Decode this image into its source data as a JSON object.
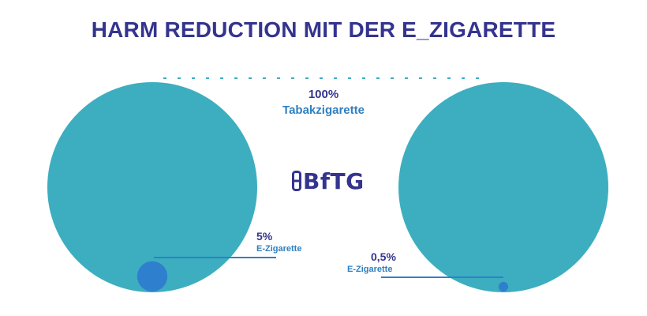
{
  "title": "HARM REDUCTION MIT DER E_ZIGARETTE",
  "logo": {
    "text": "BfTG",
    "icon": "bftg-logo-icon"
  },
  "colors": {
    "big_circle": "#3daebf",
    "small_circle": "#2f7fcf",
    "title": "#34348f",
    "sub_label": "#2f7fbf",
    "dashed_line": "#3daebf"
  },
  "chart_data": {
    "type": "bubble",
    "title": "HARM REDUCTION MIT DER E_ZIGARETTE",
    "reference": {
      "value": 100,
      "label_value": "100%",
      "label": "Tabakzigarette"
    },
    "comparisons": [
      {
        "value": 5,
        "label_value": "5%",
        "label": "E-Zigarette"
      },
      {
        "value": 0.5,
        "label_value": "0,5%",
        "label": "E-Zigarette"
      }
    ]
  }
}
